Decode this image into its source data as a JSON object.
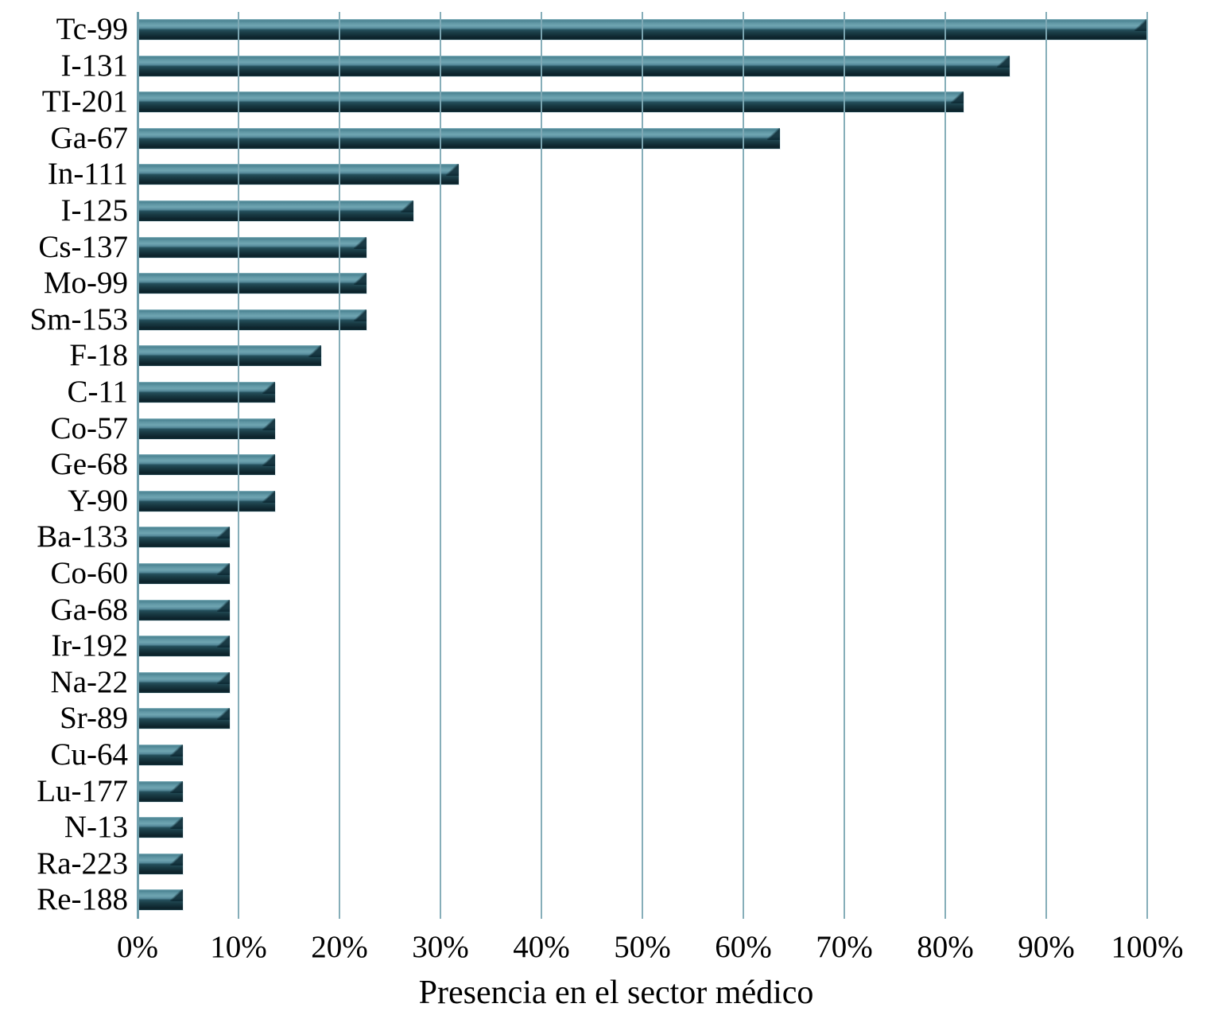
{
  "chart_data": {
    "type": "bar",
    "orientation": "horizontal",
    "title": "",
    "xlabel": "Presencia en el sector médico",
    "ylabel": "",
    "xlim": [
      0,
      100
    ],
    "grid": "vertical-only",
    "legend": "none",
    "x_ticks": [
      "0%",
      "10%",
      "20%",
      "30%",
      "40%",
      "50%",
      "60%",
      "70%",
      "80%",
      "90%",
      "100%"
    ],
    "x_tick_values": [
      0,
      10,
      20,
      30,
      40,
      50,
      60,
      70,
      80,
      90,
      100
    ],
    "categories": [
      "Tc-99",
      "I-131",
      "TI-201",
      "Ga-67",
      "In-111",
      "I-125",
      "Cs-137",
      "Mo-99",
      "Sm-153",
      "F-18",
      "C-11",
      "Co-57",
      "Ge-68",
      "Y-90",
      "Ba-133",
      "Co-60",
      "Ga-68",
      "Ir-192",
      "Na-22",
      "Sr-89",
      "Cu-64",
      "Lu-177",
      "N-13",
      "Ra-223",
      "Re-188"
    ],
    "values": [
      100,
      86.4,
      81.8,
      63.6,
      31.8,
      27.3,
      22.7,
      22.7,
      22.7,
      18.2,
      13.6,
      13.6,
      13.6,
      13.6,
      9.1,
      9.1,
      9.1,
      9.1,
      9.1,
      9.1,
      4.5,
      4.5,
      4.5,
      4.5,
      4.5
    ],
    "colors": {
      "bar_mid": "#5f96a4",
      "bar_highlight": "#6fa5b2",
      "bar_dark": "#122e37",
      "gridline": "#7faab5",
      "text": "#000000",
      "background": "#ffffff"
    }
  }
}
